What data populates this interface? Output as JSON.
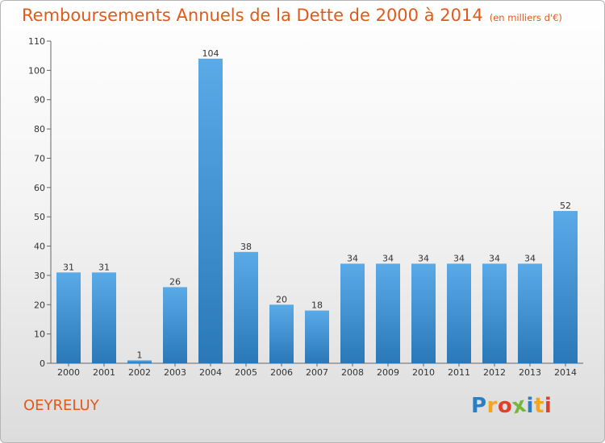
{
  "chart_data": {
    "type": "bar",
    "title": "Remboursements Annuels de la Dette de 2000 à 2014",
    "subtitle": "(en milliers d'€)",
    "categories": [
      "2000",
      "2001",
      "2002",
      "2003",
      "2004",
      "2005",
      "2006",
      "2007",
      "2008",
      "2009",
      "2010",
      "2011",
      "2012",
      "2013",
      "2014"
    ],
    "values": [
      31,
      31,
      1,
      26,
      104,
      38,
      20,
      18,
      34,
      34,
      34,
      34,
      34,
      34,
      52
    ],
    "ylim": [
      0,
      110
    ],
    "yticks": [
      0,
      10,
      20,
      30,
      40,
      50,
      60,
      70,
      80,
      90,
      100,
      110
    ],
    "grid": false,
    "bar_color_top": "#5aaae8",
    "bar_color_bottom": "#2a78b8"
  },
  "commune": "OEYRELUY",
  "logo": {
    "text": "Proxiti",
    "colors": [
      "#2b7fc3",
      "#f7a41d",
      "#e0402a",
      "#74b83a",
      "#2b7fc3",
      "#f7a41d",
      "#e0402a"
    ]
  },
  "accent_color": "#e05a1a"
}
